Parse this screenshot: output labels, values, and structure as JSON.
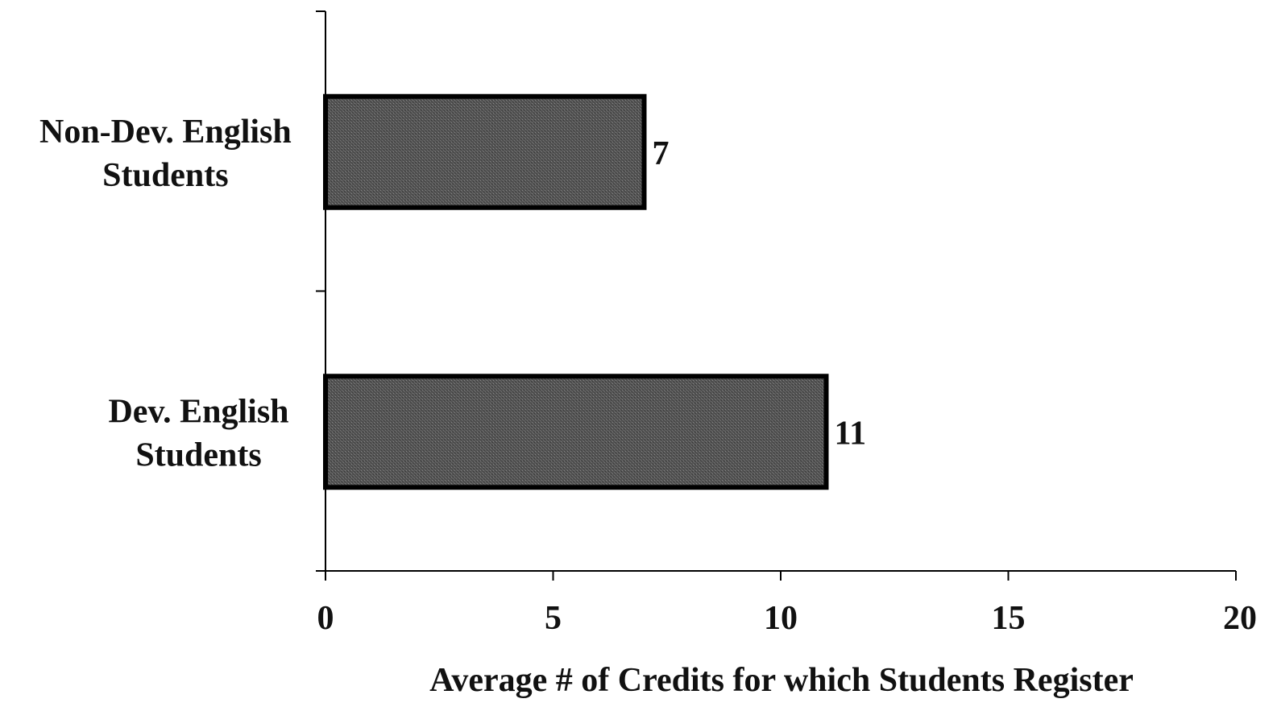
{
  "chart_data": {
    "type": "bar",
    "orientation": "horizontal",
    "categories": [
      [
        "Non-Dev. English",
        "Students"
      ],
      [
        "Dev. English",
        "Students"
      ]
    ],
    "values": [
      7,
      11
    ],
    "value_labels": [
      "7",
      "11"
    ],
    "title": "",
    "xlabel": "Average # of Credits for which Students Register",
    "ylabel": "",
    "xlim": [
      0,
      20
    ],
    "xticks": [
      0,
      5,
      10,
      15,
      20
    ],
    "xtick_labels": [
      "0",
      "5",
      "10",
      "15",
      "20"
    ],
    "grid": false,
    "legend": "none",
    "colors": {
      "bar_fill": "#4a4a4a",
      "bar_stroke": "#000000",
      "axis": "#000000",
      "text": "#111111"
    }
  }
}
